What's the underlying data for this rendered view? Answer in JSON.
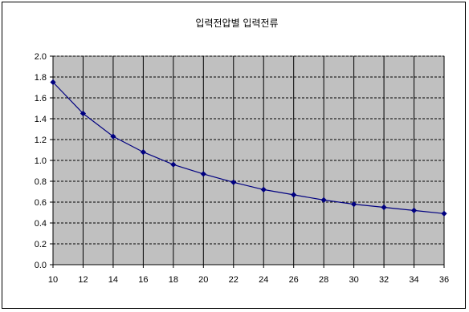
{
  "chart_data": {
    "type": "line",
    "title": "입력전압별 입력전류",
    "xlabel": "",
    "ylabel": "",
    "x": [
      10,
      12,
      14,
      16,
      18,
      20,
      22,
      24,
      26,
      28,
      30,
      32,
      34,
      36
    ],
    "series": [
      {
        "values": [
          1.75,
          1.45,
          1.23,
          1.08,
          0.96,
          0.87,
          0.79,
          0.72,
          0.67,
          0.62,
          0.58,
          0.55,
          0.52,
          0.49
        ],
        "color": "#000080"
      }
    ],
    "xlim": [
      10,
      36
    ],
    "ylim": [
      0.0,
      2.0
    ],
    "x_ticks": [
      "10",
      "12",
      "14",
      "16",
      "18",
      "20",
      "22",
      "24",
      "26",
      "28",
      "30",
      "32",
      "34",
      "36"
    ],
    "y_ticks": [
      "0.0",
      "0.2",
      "0.4",
      "0.6",
      "0.8",
      "1.0",
      "1.2",
      "1.4",
      "1.6",
      "1.8",
      "2.0"
    ],
    "grid": true,
    "legend": "none",
    "plot_background": "#c0c0c0"
  }
}
